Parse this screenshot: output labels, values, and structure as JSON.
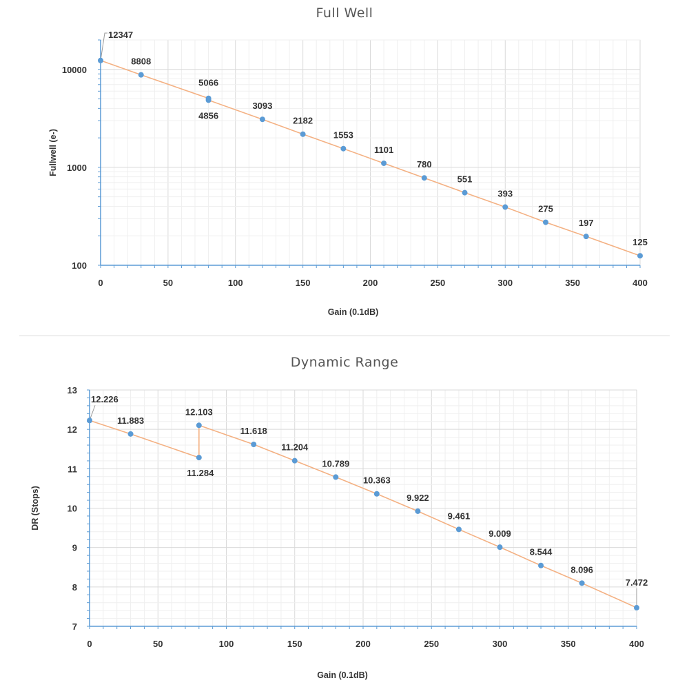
{
  "chart_data": [
    {
      "type": "line",
      "title": "Full Well",
      "xlabel": "Gain (0.1dB)",
      "ylabel": "Fullwell (e-)",
      "yscale": "log",
      "xlim": [
        0,
        400
      ],
      "ylim": [
        100,
        20000
      ],
      "xticks": [
        "0",
        "50",
        "100",
        "150",
        "200",
        "250",
        "300",
        "350",
        "400"
      ],
      "yticks": [
        "100",
        "1000",
        "10000"
      ],
      "grid": true,
      "line_color": "#f4b183",
      "marker_color": "#5b9bd5",
      "x": [
        0,
        30,
        80,
        80,
        120,
        150,
        180,
        210,
        240,
        270,
        300,
        330,
        360,
        400
      ],
      "values": [
        12347,
        8808,
        5066,
        4856,
        3093,
        2182,
        1553,
        1101,
        780,
        551,
        393,
        275,
        197,
        125
      ],
      "data_labels": [
        "12347",
        "8808",
        "5066",
        "4856",
        "3093",
        "2182",
        "1553",
        "1101",
        "780",
        "551",
        "393",
        "275",
        "197",
        "125"
      ]
    },
    {
      "type": "line",
      "title": "Dynamic Range",
      "xlabel": "Gain (0.1dB)",
      "ylabel": "DR (Stops)",
      "yscale": "linear",
      "xlim": [
        0,
        400
      ],
      "ylim": [
        7,
        13
      ],
      "xticks": [
        "0",
        "50",
        "100",
        "150",
        "200",
        "250",
        "300",
        "350",
        "400"
      ],
      "yticks": [
        "7",
        "8",
        "9",
        "10",
        "11",
        "12",
        "13"
      ],
      "grid": true,
      "line_color": "#f4b183",
      "marker_color": "#5b9bd5",
      "x": [
        0,
        30,
        80,
        80,
        120,
        150,
        180,
        210,
        240,
        270,
        300,
        330,
        360,
        400
      ],
      "values": [
        12.226,
        11.883,
        11.284,
        12.103,
        11.618,
        11.204,
        10.789,
        10.363,
        9.922,
        9.461,
        9.009,
        8.544,
        8.096,
        7.472
      ],
      "data_labels": [
        "12.226",
        "11.883",
        "11.284",
        "12.103",
        "11.618",
        "11.204",
        "10.789",
        "10.363",
        "9.922",
        "9.461",
        "9.009",
        "8.544",
        "8.096",
        "7.472"
      ]
    }
  ]
}
